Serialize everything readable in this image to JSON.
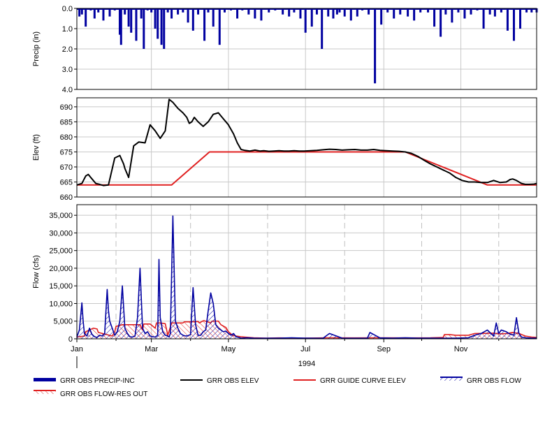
{
  "chart_data": [
    {
      "type": "bar",
      "name": "precip",
      "ylabel": "Precip (in)",
      "ylim": [
        0,
        4
      ],
      "y_inverted": true,
      "y_ticks": [
        "0.0",
        "1.0",
        "2.0",
        "3.0",
        "4.0"
      ],
      "y_tick_values": [
        0,
        1,
        2,
        3,
        4
      ],
      "grid": true,
      "series": [
        {
          "name": "GRR OBS PRECIP-INC",
          "color": "#0000a0",
          "days": [
            2,
            4,
            7,
            11,
            14,
            17,
            21,
            26,
            30,
            34,
            35,
            38,
            41,
            43,
            47,
            51,
            53,
            56,
            59,
            62,
            64,
            67,
            69,
            72,
            75,
            80,
            84,
            88,
            92,
            96,
            101,
            104,
            108,
            113,
            117,
            122,
            127,
            131,
            136,
            141,
            146,
            152,
            157,
            163,
            168,
            172,
            177,
            181,
            186,
            190,
            194,
            199,
            203,
            206,
            208,
            212,
            217,
            222,
            226,
            231,
            236,
            241,
            246,
            251,
            256,
            262,
            267,
            272,
            278,
            283,
            288,
            292,
            297,
            302,
            307,
            312,
            317,
            322,
            327,
            331,
            336,
            341,
            346,
            351,
            356,
            360,
            364
          ],
          "values": [
            0.4,
            0.3,
            0.9,
            0.1,
            0.5,
            0.2,
            0.6,
            0.4,
            0.1,
            1.3,
            1.8,
            0.3,
            0.9,
            1.2,
            1.6,
            0.5,
            2.0,
            0.1,
            0.2,
            1.0,
            1.5,
            1.8,
            2.0,
            0.2,
            0.5,
            0.3,
            0.2,
            0.7,
            1.1,
            0.3,
            1.6,
            0.2,
            0.9,
            1.8,
            0.2,
            0.1,
            0.5,
            0.1,
            0.3,
            0.5,
            0.6,
            0.2,
            0.1,
            0.3,
            0.4,
            0.2,
            0.5,
            1.2,
            0.9,
            0.3,
            2.0,
            0.4,
            0.5,
            0.3,
            0.2,
            0.4,
            0.6,
            0.4,
            0.1,
            0.3,
            3.7,
            0.8,
            0.2,
            0.5,
            0.3,
            0.4,
            0.6,
            0.2,
            0.2,
            0.9,
            1.4,
            0.3,
            0.7,
            0.2,
            0.5,
            0.3,
            0.1,
            1.0,
            0.3,
            0.4,
            0.2,
            1.1,
            1.6,
            1.0,
            0.2,
            0.2,
            0.2
          ]
        }
      ]
    },
    {
      "type": "line",
      "name": "elev",
      "ylabel": "Elev (ft)",
      "ylim": [
        660,
        693
      ],
      "y_ticks": [
        "660",
        "665",
        "670",
        "675",
        "680",
        "685",
        "690"
      ],
      "y_tick_values": [
        660,
        665,
        670,
        675,
        680,
        685,
        690
      ],
      "grid": true,
      "series": [
        {
          "name": "GRR OBS ELEV",
          "color": "#000000",
          "x": [
            0,
            4,
            7,
            9,
            12,
            15,
            18,
            21,
            25,
            30,
            34,
            37,
            38,
            41,
            45,
            49,
            54,
            58,
            62,
            66,
            70,
            73,
            76,
            80,
            84,
            87,
            89,
            91,
            93,
            96,
            100,
            104,
            108,
            112,
            116,
            120,
            124,
            127,
            130,
            133,
            137,
            141,
            145,
            148,
            152,
            156,
            160,
            164,
            168,
            172,
            176,
            180,
            185,
            190,
            195,
            200,
            205,
            210,
            215,
            220,
            225,
            230,
            235,
            240,
            245,
            250,
            255,
            260,
            265,
            270,
            275,
            280,
            285,
            290,
            295,
            300,
            305,
            310,
            315,
            320,
            325,
            330,
            335,
            340,
            343,
            345,
            348,
            350,
            352,
            355,
            358,
            362,
            364
          ],
          "y": [
            664,
            664.5,
            667,
            667.5,
            666,
            664.5,
            664.2,
            663.8,
            664,
            673,
            673.8,
            671,
            669.5,
            666.5,
            677,
            678.3,
            678,
            684,
            682,
            679.5,
            682,
            692.5,
            691.5,
            689.5,
            688,
            686.5,
            684.5,
            685,
            686.5,
            685,
            683.5,
            685,
            687.5,
            688,
            686,
            684,
            681,
            678,
            675.8,
            675.5,
            675.3,
            675.6,
            675.3,
            675.4,
            675.2,
            675.3,
            675.4,
            675.3,
            675.3,
            675.4,
            675.3,
            675.3,
            675.4,
            675.5,
            675.7,
            675.9,
            675.8,
            675.6,
            675.7,
            675.8,
            675.6,
            675.6,
            675.8,
            675.5,
            675.4,
            675.3,
            675.2,
            675.0,
            674.5,
            673.5,
            672.2,
            671,
            670,
            669,
            668,
            666.5,
            665.5,
            665,
            665.0,
            664.8,
            664.8,
            665.5,
            664.8,
            665,
            665.8,
            666.0,
            665.5,
            665.0,
            664.5,
            664.2,
            664.2,
            664.3,
            664.5
          ]
        },
        {
          "name": "GRR GUIDE CURVE ELEV",
          "color": "#e02020",
          "x": [
            0,
            75,
            105,
            260,
            325,
            340,
            364
          ],
          "y": [
            664,
            664,
            675,
            675,
            664,
            664,
            664
          ]
        }
      ]
    },
    {
      "type": "line",
      "name": "flow",
      "ylabel": "Flow (cfs)",
      "ylim": [
        0,
        38000
      ],
      "y_ticks": [
        "0",
        "5,000",
        "10,000",
        "15,000",
        "20,000",
        "25,000",
        "30,000",
        "35,000"
      ],
      "y_tick_values": [
        0,
        5000,
        10000,
        15000,
        20000,
        25000,
        30000,
        35000
      ],
      "x_ticks": [
        "Jan",
        "Mar",
        "May",
        "Jul",
        "Sep",
        "Nov"
      ],
      "x_tick_days": [
        0,
        59,
        120,
        181,
        243,
        304
      ],
      "x_minor_days": [
        31,
        90,
        151,
        212,
        273,
        334
      ],
      "x_year_label": "1994",
      "xlim": [
        0,
        364
      ],
      "grid": true,
      "series": [
        {
          "name": "GRR OBS FLOW",
          "color": "#0000a0",
          "x": [
            0,
            2,
            4,
            5,
            6,
            8,
            10,
            12,
            14,
            16,
            18,
            20,
            22,
            24,
            25,
            26,
            28,
            30,
            32,
            34,
            36,
            38,
            40,
            42,
            44,
            46,
            48,
            50,
            52,
            54,
            56,
            58,
            60,
            62,
            64,
            65,
            66,
            68,
            70,
            72,
            73,
            74,
            76,
            78,
            80,
            82,
            84,
            86,
            88,
            90,
            92,
            94,
            96,
            98,
            100,
            102,
            104,
            106,
            108,
            110,
            112,
            114,
            116,
            118,
            120,
            122,
            124,
            126,
            128,
            130,
            135,
            140,
            150,
            160,
            170,
            180,
            190,
            195,
            200,
            210,
            220,
            230,
            232,
            240,
            250,
            260,
            270,
            280,
            290,
            300,
            310,
            315,
            320,
            325,
            330,
            332,
            334,
            336,
            340,
            342,
            344,
            346,
            348,
            350,
            352,
            355,
            360,
            364
          ],
          "x_peaks_note": "",
          "y": [
            500,
            2500,
            10200,
            5000,
            1500,
            800,
            3000,
            1200,
            600,
            400,
            1000,
            800,
            1500,
            14000,
            8000,
            5000,
            3000,
            1000,
            2000,
            5000,
            15000,
            3000,
            1500,
            600,
            500,
            800,
            6000,
            20000,
            3000,
            1500,
            2000,
            800,
            600,
            500,
            1000,
            22500,
            6000,
            2000,
            1000,
            800,
            500,
            1500,
            34800,
            5000,
            3000,
            1500,
            1000,
            800,
            900,
            1200,
            14500,
            4000,
            1000,
            1000,
            2000,
            2500,
            8000,
            13000,
            10000,
            4000,
            3000,
            2500,
            2000,
            2200,
            1500,
            1000,
            1500,
            600,
            400,
            200,
            300,
            200,
            150,
            200,
            300,
            200,
            150,
            200,
            1500,
            200,
            150,
            200,
            1800,
            250,
            200,
            300,
            200,
            200,
            150,
            200,
            300,
            1000,
            1500,
            2500,
            800,
            4500,
            1500,
            2500,
            2000,
            1500,
            1200,
            1000,
            6000,
            1500,
            500,
            300,
            200,
            200
          ]
        },
        {
          "name": "GRR OBS FLOW-RES OUT",
          "color": "#e02020",
          "x": [
            0,
            6,
            7,
            13,
            16,
            17,
            28,
            30,
            31,
            36,
            50,
            52,
            53,
            58,
            62,
            63,
            66,
            70,
            72,
            75,
            84,
            85,
            86,
            88,
            90,
            96,
            97,
            100,
            101,
            106,
            107,
            110,
            112,
            114,
            118,
            120,
            122,
            123,
            126,
            130,
            133,
            140,
            150,
            160,
            180,
            200,
            220,
            240,
            260,
            280,
            290,
            291,
            295,
            300,
            310,
            315,
            330,
            335,
            340,
            345,
            350,
            355,
            360,
            364
          ],
          "y": [
            500,
            800,
            2000,
            3000,
            2800,
            1800,
            800,
            2000,
            3500,
            4000,
            4000,
            2500,
            4200,
            4200,
            3000,
            4500,
            4500,
            4300,
            1000,
            4500,
            4500,
            4800,
            4800,
            4800,
            4800,
            4900,
            4500,
            5100,
            5100,
            4500,
            5000,
            5000,
            5000,
            4000,
            3200,
            2000,
            1400,
            1000,
            800,
            600,
            500,
            300,
            200,
            250,
            200,
            300,
            250,
            300,
            250,
            300,
            400,
            1200,
            1200,
            1000,
            1000,
            1500,
            1600,
            1400,
            1500,
            1800,
            1500,
            800,
            500,
            400
          ]
        }
      ]
    }
  ],
  "legend": [
    {
      "label": "GRR OBS PRECIP-INC",
      "style": "thick-bar",
      "color": "#0000a0"
    },
    {
      "label": "GRR OBS ELEV",
      "style": "line",
      "color": "#000000"
    },
    {
      "label": "GRR GUIDE CURVE ELEV",
      "style": "line",
      "color": "#e02020"
    },
    {
      "label": "GRR OBS FLOW",
      "style": "hatch",
      "color": "#0000a0"
    },
    {
      "label": "GRR OBS FLOW-RES OUT",
      "style": "hatch",
      "color": "#e02020"
    }
  ]
}
